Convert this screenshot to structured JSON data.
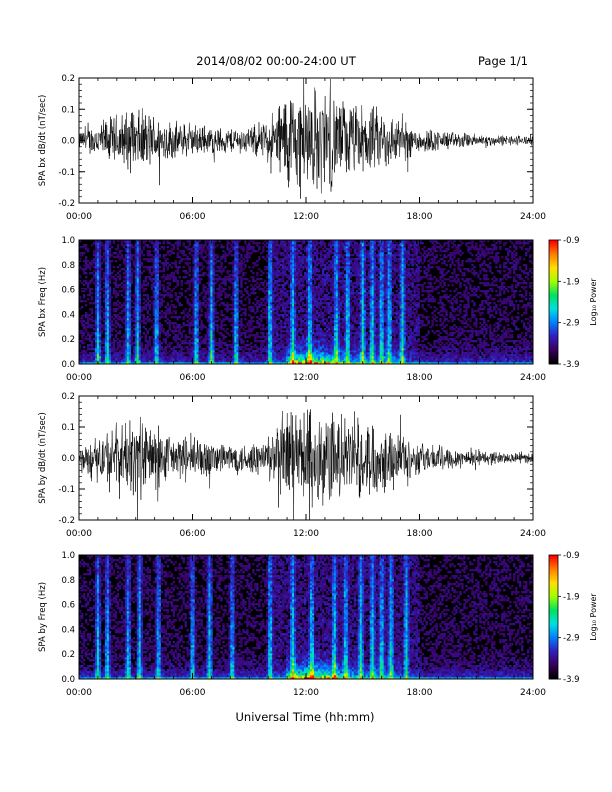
{
  "header": {
    "title": "2014/08/02  00:00-24:00 UT",
    "page": "Page 1/1"
  },
  "xlabel": "Universal Time (hh:mm)",
  "colors": {
    "trace": "#000000",
    "background": "#ffffff",
    "colormap": [
      "#000000",
      "#3a0060",
      "#3020c0",
      "#0080ff",
      "#00e0e0",
      "#00e060",
      "#a0ff00",
      "#ffe000",
      "#ff8000",
      "#ff0000"
    ]
  },
  "chart_data": [
    {
      "type": "line",
      "ylabel": "SPA bx dB/dt (nT/sec)",
      "xlim": [
        "00:00",
        "24:00"
      ],
      "ylim": [
        -0.2,
        0.2
      ],
      "x_ticks": [
        "00:00",
        "06:00",
        "12:00",
        "18:00",
        "24:00"
      ],
      "y_ticks": [
        "-0.2",
        "-0.1",
        "0.0",
        "0.1",
        "0.2"
      ],
      "envelope": {
        "x_hours": [
          0,
          1,
          2,
          3,
          4,
          5,
          6,
          7,
          8,
          9,
          10,
          11,
          12,
          13,
          14,
          15,
          16,
          17,
          18,
          19,
          20,
          21,
          22,
          23,
          24
        ],
        "amplitude": [
          0.03,
          0.07,
          0.1,
          0.12,
          0.1,
          0.07,
          0.06,
          0.05,
          0.05,
          0.05,
          0.08,
          0.2,
          0.2,
          0.2,
          0.15,
          0.13,
          0.12,
          0.08,
          0.05,
          0.04,
          0.03,
          0.025,
          0.02,
          0.02,
          0.02
        ]
      }
    },
    {
      "type": "heatmap",
      "ylabel": "SPA bx Freq (Hz)",
      "xlim": [
        "00:00",
        "24:00"
      ],
      "ylim": [
        0.0,
        1.0
      ],
      "x_ticks": [
        "00:00",
        "06:00",
        "12:00",
        "18:00",
        "24:00"
      ],
      "y_ticks": [
        "0.0",
        "0.2",
        "0.4",
        "0.6",
        "0.8",
        "1.0"
      ],
      "colorbar": {
        "label": "Log₁₀ Power",
        "range": [
          -3.9,
          -0.9
        ],
        "ticks": [
          "-0.9",
          "-1.9",
          "-2.9",
          "-3.9"
        ]
      },
      "bursts_hours": [
        1.0,
        1.5,
        2.6,
        3.1,
        4.1,
        6.2,
        7.0,
        8.3,
        10.1,
        11.3,
        12.2,
        13.6,
        14.2,
        15.0,
        15.5,
        16.0,
        16.4,
        17.1
      ],
      "peak_hours": [
        11,
        14
      ]
    },
    {
      "type": "line",
      "ylabel": "SPA by dB/dt (nT/sec)",
      "xlim": [
        "00:00",
        "24:00"
      ],
      "ylim": [
        -0.2,
        0.2
      ],
      "x_ticks": [
        "00:00",
        "06:00",
        "12:00",
        "18:00",
        "24:00"
      ],
      "y_ticks": [
        "-0.2",
        "-0.1",
        "0.0",
        "0.1",
        "0.2"
      ],
      "envelope": {
        "x_hours": [
          0,
          1,
          2,
          3,
          4,
          5,
          6,
          7,
          8,
          9,
          10,
          11,
          12,
          13,
          14,
          15,
          16,
          17,
          18,
          19,
          20,
          21,
          22,
          23,
          24
        ],
        "amplitude": [
          0.03,
          0.09,
          0.13,
          0.16,
          0.13,
          0.08,
          0.09,
          0.07,
          0.06,
          0.06,
          0.08,
          0.2,
          0.2,
          0.2,
          0.15,
          0.15,
          0.13,
          0.1,
          0.06,
          0.05,
          0.04,
          0.03,
          0.025,
          0.02,
          0.02
        ]
      }
    },
    {
      "type": "heatmap",
      "ylabel": "SPA by Freq (Hz)",
      "xlim": [
        "00:00",
        "24:00"
      ],
      "ylim": [
        0.0,
        1.0
      ],
      "x_ticks": [
        "00:00",
        "06:00",
        "12:00",
        "18:00",
        "24:00"
      ],
      "y_ticks": [
        "0.0",
        "0.2",
        "0.4",
        "0.6",
        "0.8",
        "1.0"
      ],
      "colorbar": {
        "label": "Log₁₀ Power",
        "range": [
          -3.9,
          -0.9
        ],
        "ticks": [
          "-0.9",
          "-1.9",
          "-2.9",
          "-3.9"
        ]
      },
      "bursts_hours": [
        1.0,
        1.5,
        2.6,
        3.2,
        4.2,
        6.0,
        6.9,
        8.1,
        10.1,
        11.3,
        12.3,
        13.5,
        14.1,
        14.9,
        15.5,
        16.0,
        16.5,
        17.3
      ],
      "peak_hours": [
        11,
        14
      ]
    }
  ]
}
